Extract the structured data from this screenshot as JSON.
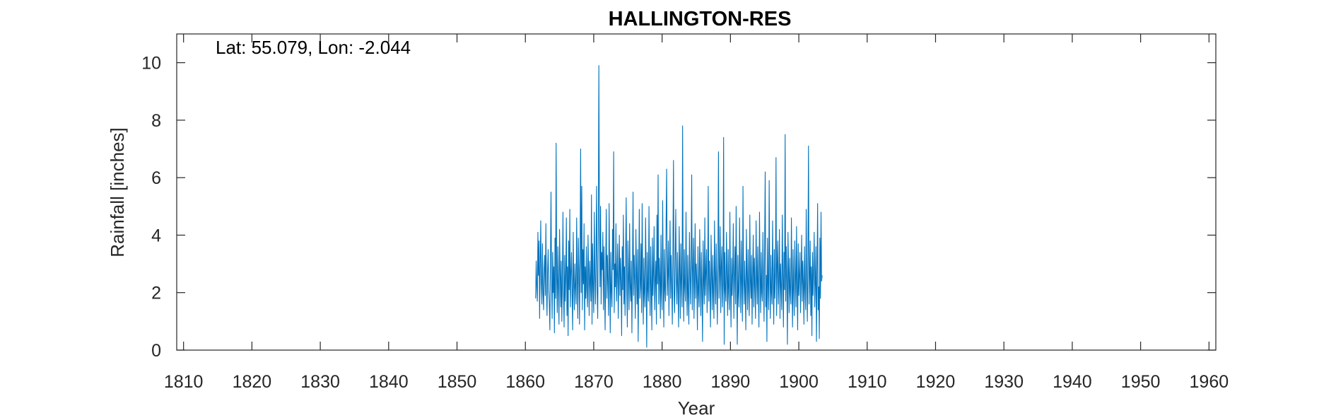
{
  "chart_data": {
    "type": "line",
    "title": "HALLINGTON-RES",
    "xlabel": "Year",
    "ylabel": "Rainfall [inches]",
    "xlim": [
      1809,
      1961
    ],
    "ylim": [
      0,
      11
    ],
    "xticks": [
      1810,
      1820,
      1830,
      1840,
      1850,
      1860,
      1870,
      1880,
      1890,
      1900,
      1910,
      1920,
      1930,
      1940,
      1950,
      1960
    ],
    "yticks": [
      0,
      2,
      4,
      6,
      8,
      10
    ],
    "grid": false,
    "legend": "none",
    "annotation": "Lat: 55.079, Lon: -2.044",
    "series": [
      {
        "color": "#0072BD",
        "x_start": 1861.5,
        "step": 0.08333,
        "values": [
          1.8,
          3.1,
          2.2,
          1.7,
          4.1,
          2.6,
          3.8,
          1.1,
          2.9,
          4.5,
          2.3,
          1.6,
          3.7,
          2.0,
          1.4,
          2.8,
          3.3,
          1.9,
          4.4,
          2.2,
          1.2,
          2.7,
          3.5,
          2.1,
          1.6,
          0.7,
          3.0,
          5.5,
          2.4,
          1.1,
          3.4,
          2.0,
          2.9,
          0.6,
          3.9,
          1.8,
          7.2,
          2.5,
          1.3,
          3.6,
          2.2,
          0.9,
          4.2,
          2.8,
          1.5,
          3.1,
          1.0,
          2.4,
          4.8,
          2.0,
          0.8,
          3.3,
          1.7,
          2.6,
          4.6,
          1.2,
          2.9,
          0.5,
          3.8,
          2.1,
          4.9,
          1.5,
          2.7,
          3.4,
          1.9,
          0.7,
          4.1,
          2.3,
          1.4,
          3.0,
          2.2,
          1.6,
          4.6,
          2.5,
          1.1,
          3.9,
          2.8,
          0.9,
          3.2,
          7.0,
          2.0,
          5.7,
          1.4,
          3.5,
          2.3,
          4.4,
          0.7,
          2.9,
          1.8,
          3.6,
          2.1,
          1.5,
          4.0,
          2.6,
          1.2,
          3.1,
          2.4,
          1.7,
          5.4,
          0.9,
          3.7,
          2.2,
          1.3,
          4.8,
          2.6,
          1.6,
          3.3,
          5.7,
          2.0,
          1.1,
          3.9,
          9.9,
          4.6,
          2.2,
          5.0,
          1.6,
          3.4,
          2.8,
          4.1,
          1.4,
          3.6,
          2.2,
          0.7,
          2.9,
          4.9,
          1.8,
          3.3,
          2.4,
          1.2,
          5.1,
          2.7,
          0.6,
          3.4,
          2.0,
          1.5,
          4.2,
          2.8,
          6.9,
          1.3,
          3.0,
          2.2,
          4.4,
          1.7,
          2.6,
          3.7,
          1.1,
          2.5,
          4.0,
          1.9,
          3.2,
          2.4,
          0.5,
          3.6,
          2.1,
          4.7,
          1.6,
          2.9,
          1.2,
          3.4,
          5.3,
          2.0,
          0.8,
          3.8,
          2.5,
          1.4,
          4.4,
          2.2,
          1.7,
          3.1,
          0.6,
          2.8,
          5.5,
          1.9,
          3.3,
          2.4,
          1.1,
          4.2,
          2.7,
          1.6,
          3.5,
          0.3,
          2.6,
          4.9,
          1.8,
          2.2,
          3.7,
          1.3,
          5.1,
          2.4,
          0.9,
          3.2,
          2.0,
          1.5,
          4.6,
          2.7,
          0.1,
          3.4,
          2.1,
          1.7,
          5.0,
          2.5,
          1.2,
          3.6,
          2.2,
          0.7,
          3.9,
          1.9,
          2.8,
          4.3,
          1.4,
          2.5,
          3.1,
          0.9,
          4.7,
          2.3,
          6.1,
          1.6,
          3.2,
          2.5,
          1.1,
          4.0,
          2.0,
          1.4,
          5.2,
          2.6,
          0.8,
          3.5,
          2.1,
          1.7,
          4.4,
          6.3,
          1.9,
          2.6,
          3.8,
          1.2,
          2.9,
          4.5,
          1.8,
          3.3,
          2.2,
          0.9,
          3.6,
          6.6,
          2.0,
          1.3,
          3.1,
          4.9,
          2.4,
          1.6,
          3.4,
          2.1,
          0.8,
          4.3,
          2.7,
          1.1,
          3.7,
          2.3,
          1.5,
          7.8,
          2.6,
          1.0,
          3.5,
          2.2,
          1.7,
          4.8,
          2.4,
          1.2,
          3.3,
          1.9,
          0.9,
          4.1,
          2.6,
          1.6,
          3.2,
          6.1,
          1.4,
          2.8,
          3.9,
          1.1,
          2.5,
          4.4,
          1.8,
          3.0,
          2.3,
          0.7,
          3.6,
          2.0,
          1.5,
          4.2,
          2.7,
          1.2,
          3.4,
          2.1,
          0.3,
          3.8,
          2.4,
          1.6,
          4.6,
          1.9,
          2.7,
          3.5,
          1.3,
          2.4,
          5.7,
          1.7,
          3.1,
          2.2,
          0.8,
          4.0,
          2.6,
          1.4,
          3.3,
          2.0,
          1.1,
          4.5,
          2.5,
          1.6,
          3.7,
          2.2,
          0.9,
          3.1,
          6.9,
          1.8,
          2.6,
          4.3,
          1.3,
          2.9,
          3.6,
          1.5,
          2.3,
          7.4,
          0.2,
          3.4,
          2.1,
          1.7,
          4.1,
          2.6,
          1.2,
          3.5,
          2.0,
          1.4,
          4.8,
          2.4,
          0.8,
          3.2,
          1.9,
          2.7,
          4.4,
          1.1,
          2.5,
          3.6,
          1.6,
          5.0,
          2.2,
          0.2,
          3.3,
          2.0,
          1.5,
          4.6,
          2.7,
          1.3,
          3.8,
          2.3,
          1.0,
          5.7,
          2.5,
          1.6,
          3.1,
          2.1,
          0.7,
          4.2,
          2.6,
          1.4,
          3.5,
          2.0,
          1.2,
          4.7,
          2.4,
          1.8,
          3.3,
          0.9,
          2.6,
          4.0,
          1.5,
          3.2,
          2.2,
          1.1,
          4.5,
          2.5,
          1.6,
          3.6,
          2.1,
          0.8,
          4.8,
          2.7,
          1.3,
          3.4,
          2.0,
          1.7,
          4.1,
          2.4,
          1.0,
          3.7,
          6.2,
          1.5,
          2.6,
          0.3,
          3.9,
          2.3,
          1.4,
          5.9,
          2.6,
          1.1,
          3.3,
          2.0,
          1.6,
          4.5,
          2.4,
          0.9,
          3.5,
          1.8,
          2.7,
          6.7,
          1.2,
          2.9,
          3.8,
          1.6,
          2.4,
          4.2,
          1.1,
          3.0,
          2.2,
          1.4,
          4.7,
          2.6,
          0.8,
          3.4,
          2.1,
          7.5,
          1.7,
          3.6,
          2.4,
          0.2,
          4.1,
          2.7,
          1.3,
          3.2,
          2.0,
          1.6,
          4.6,
          2.3,
          0.8,
          3.5,
          2.1,
          1.2,
          3.8,
          2.5,
          1.5,
          4.3,
          2.2,
          0.7,
          3.7,
          1.9,
          2.6,
          3.4,
          1.3,
          2.4,
          4.0,
          1.7,
          3.1,
          2.3,
          0.9,
          3.6,
          2.1,
          1.4,
          4.9,
          2.4,
          1.0,
          3.2,
          7.1,
          1.6,
          2.5,
          3.8,
          1.2,
          2.9,
          0.5,
          3.4,
          1.9,
          2.7,
          4.1,
          1.5,
          2.3,
          3.6,
          0.3,
          2.6,
          5.1,
          1.4,
          2.2,
          0.4,
          3.9,
          1.8,
          4.8,
          2.4,
          2.6
        ]
      }
    ]
  }
}
